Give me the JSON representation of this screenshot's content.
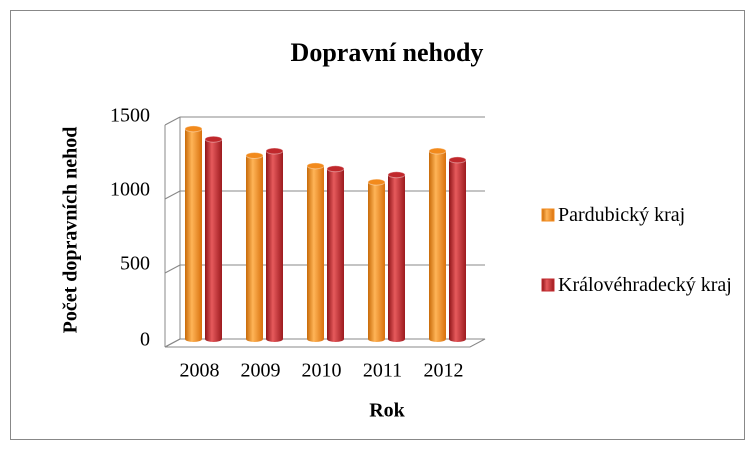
{
  "chart_data": {
    "type": "bar",
    "title": "Dopravní nehody",
    "x_label": "Rok",
    "y_label": "Počet dopravních nehod",
    "categories": [
      "2008",
      "2009",
      "2010",
      "2011",
      "2012"
    ],
    "series": [
      {
        "name": "Pardubický kraj",
        "color": "#f28a1c",
        "values": [
          1420,
          1240,
          1170,
          1060,
          1270
        ]
      },
      {
        "name": "Královéhradecký kraj",
        "color": "#c0282c",
        "values": [
          1350,
          1270,
          1150,
          1110,
          1210
        ]
      }
    ],
    "ylim": [
      0,
      1500
    ],
    "yticks": [
      0,
      500,
      1000,
      1500
    ],
    "grid": true,
    "legend": "right"
  }
}
